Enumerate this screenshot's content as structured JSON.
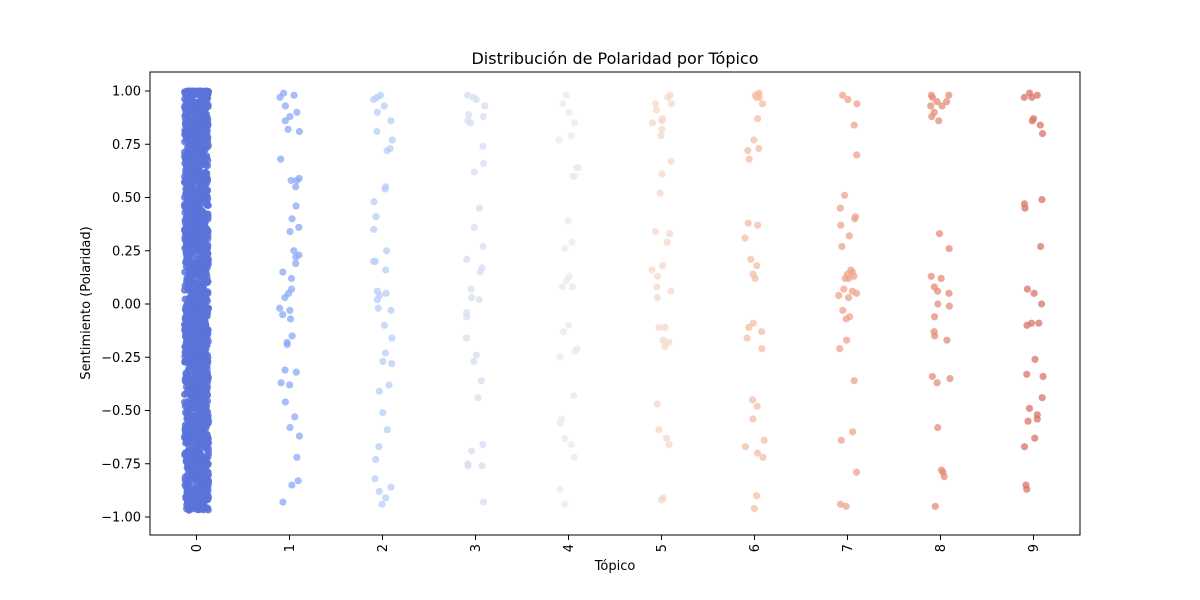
{
  "chart_data": {
    "type": "scatter",
    "title": "Distribución de Polaridad por Tópico",
    "xlabel": "Tópico",
    "ylabel": "Sentimiento (Polaridad)",
    "categories": [
      "0",
      "1",
      "2",
      "3",
      "4",
      "5",
      "6",
      "7",
      "8",
      "9"
    ],
    "y_ticks": [
      "1.00",
      "0.75",
      "0.50",
      "0.25",
      "0.00",
      "−0.25",
      "−0.50",
      "−0.75",
      "−1.00"
    ],
    "y_tick_values": [
      1.0,
      0.75,
      0.5,
      0.25,
      0.0,
      -0.25,
      -0.5,
      -0.75,
      -1.0
    ],
    "ylim": [
      -1.07,
      1.09
    ],
    "grid": false,
    "legend": "none",
    "palette": "coolwarm",
    "series_colors": [
      "#5b73d9",
      "#8aa8f5",
      "#b7cdf8",
      "#d6def0",
      "#eaeaea",
      "#f3d8c8",
      "#f4bca5",
      "#efa38a",
      "#e48c77",
      "#d77468"
    ],
    "series": [
      {
        "category": "0",
        "dense_range": [
          -0.97,
          1.0
        ],
        "values": []
      },
      {
        "category": "1",
        "values": [
          0.99,
          0.98,
          0.97,
          0.93,
          0.9,
          0.88,
          0.86,
          0.82,
          0.81,
          0.68,
          0.59,
          0.58,
          0.58,
          0.55,
          0.46,
          0.4,
          0.36,
          0.34,
          0.25,
          0.23,
          0.22,
          0.19,
          0.15,
          0.12,
          0.07,
          0.05,
          0.03,
          -0.02,
          -0.03,
          -0.05,
          -0.07,
          -0.15,
          -0.18,
          -0.19,
          -0.31,
          -0.32,
          -0.37,
          -0.38,
          -0.46,
          -0.53,
          -0.58,
          -0.62,
          -0.72,
          -0.83,
          -0.85,
          -0.93
        ]
      },
      {
        "category": "2",
        "values": [
          0.98,
          0.97,
          0.96,
          0.93,
          0.9,
          0.86,
          0.81,
          0.77,
          0.73,
          0.72,
          0.55,
          0.54,
          0.48,
          0.41,
          0.35,
          0.25,
          0.2,
          0.2,
          0.16,
          0.06,
          0.05,
          0.04,
          0.02,
          -0.02,
          -0.03,
          -0.1,
          -0.16,
          -0.23,
          -0.27,
          -0.28,
          -0.38,
          -0.41,
          -0.51,
          -0.59,
          -0.67,
          -0.73,
          -0.82,
          -0.86,
          -0.88,
          -0.91,
          -0.94
        ]
      },
      {
        "category": "3",
        "values": [
          0.98,
          0.97,
          0.96,
          0.93,
          0.89,
          0.88,
          0.86,
          0.85,
          0.74,
          0.66,
          0.62,
          0.45,
          0.36,
          0.27,
          0.21,
          0.17,
          0.15,
          0.07,
          0.03,
          0.02,
          -0.04,
          -0.06,
          -0.16,
          -0.24,
          -0.27,
          -0.36,
          -0.44,
          -0.66,
          -0.69,
          -0.75,
          -0.76,
          -0.76,
          -0.93
        ]
      },
      {
        "category": "4",
        "values": [
          0.98,
          0.94,
          0.9,
          0.85,
          0.79,
          0.77,
          0.64,
          0.64,
          0.6,
          0.6,
          0.39,
          0.29,
          0.26,
          0.13,
          0.11,
          0.08,
          0.08,
          -0.1,
          -0.13,
          -0.21,
          -0.22,
          -0.25,
          -0.43,
          -0.54,
          -0.56,
          -0.63,
          -0.66,
          -0.72,
          -0.87,
          -0.94
        ]
      },
      {
        "category": "5",
        "values": [
          0.98,
          0.97,
          0.94,
          0.94,
          0.91,
          0.87,
          0.86,
          0.85,
          0.82,
          0.79,
          0.67,
          0.61,
          0.52,
          0.34,
          0.33,
          0.29,
          0.18,
          0.16,
          0.13,
          0.08,
          0.06,
          0.03,
          -0.11,
          -0.11,
          -0.17,
          -0.18,
          -0.2,
          -0.47,
          -0.59,
          -0.63,
          -0.66,
          -0.91,
          -0.92
        ]
      },
      {
        "category": "6",
        "values": [
          0.99,
          0.98,
          0.98,
          0.97,
          0.97,
          0.94,
          0.87,
          0.77,
          0.73,
          0.72,
          0.68,
          0.38,
          0.37,
          0.31,
          0.21,
          0.18,
          0.14,
          0.12,
          -0.09,
          -0.11,
          -0.13,
          -0.16,
          -0.21,
          -0.45,
          -0.48,
          -0.54,
          -0.64,
          -0.67,
          -0.7,
          -0.72,
          -0.9,
          -0.96
        ]
      },
      {
        "category": "7",
        "values": [
          0.98,
          0.96,
          0.94,
          0.84,
          0.7,
          0.51,
          0.45,
          0.41,
          0.4,
          0.37,
          0.32,
          0.27,
          0.16,
          0.15,
          0.14,
          0.13,
          0.12,
          0.12,
          0.07,
          0.06,
          0.05,
          0.04,
          0.03,
          -0.03,
          -0.06,
          -0.07,
          -0.17,
          -0.21,
          -0.36,
          -0.6,
          -0.64,
          -0.79,
          -0.95,
          -0.94
        ]
      },
      {
        "category": "8",
        "values": [
          0.98,
          0.98,
          0.97,
          0.95,
          0.95,
          0.93,
          0.93,
          0.9,
          0.88,
          0.86,
          0.33,
          0.26,
          0.13,
          0.12,
          0.08,
          0.06,
          0.05,
          0.0,
          -0.01,
          -0.06,
          -0.13,
          -0.15,
          -0.17,
          -0.34,
          -0.35,
          -0.37,
          -0.58,
          -0.78,
          -0.79,
          -0.81,
          -0.95
        ]
      },
      {
        "category": "9",
        "values": [
          0.99,
          0.98,
          0.97,
          0.97,
          0.87,
          0.86,
          0.84,
          0.8,
          0.49,
          0.47,
          0.45,
          0.27,
          0.07,
          0.05,
          0.0,
          -0.09,
          -0.09,
          -0.1,
          -0.26,
          -0.33,
          -0.34,
          -0.44,
          -0.49,
          -0.52,
          -0.54,
          -0.55,
          -0.63,
          -0.67,
          -0.85,
          -0.87
        ]
      }
    ]
  }
}
